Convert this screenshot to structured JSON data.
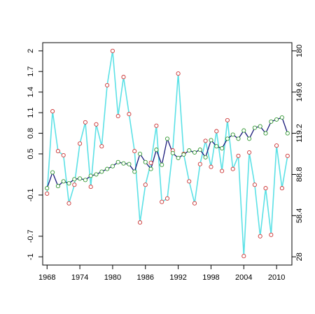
{
  "chart_data": {
    "type": "line",
    "title": "",
    "xlabel": "",
    "ylabel": "",
    "y2label": "",
    "x_ticks": [
      1968,
      1974,
      1980,
      1986,
      1992,
      1998,
      2004,
      2010
    ],
    "y_left_ticks": [
      -1,
      -0.7,
      -0.1,
      0.5,
      0.8,
      1.1,
      1.4,
      1.7,
      2
    ],
    "y_left_tick_labels": [
      "-1",
      "-0.7",
      "-0.1",
      "0.5",
      "0.8",
      "1.1",
      "1.4",
      "1.7",
      "2"
    ],
    "y_right_tick_labels": [
      "28",
      "58.4",
      "88.8",
      "119.2",
      "149.6",
      "180"
    ],
    "xlim": [
      1967.2,
      2012.8
    ],
    "ylim": [
      -1.12,
      2.12
    ],
    "grid": false,
    "colors": {
      "cyan_series": "#5ce1e6",
      "navy_series": "#1a1a7a",
      "red_marker": "#cc3333",
      "green_marker": "#339933",
      "axis": "#000000"
    },
    "series": [
      {
        "color": "cyan_series",
        "marker": "red_marker",
        "x": [
          1968,
          1969,
          1970,
          1971,
          1972,
          1973,
          1974,
          1975,
          1976,
          1977,
          1978,
          1979,
          1980,
          1981,
          1982,
          1983,
          1984,
          1985,
          1986,
          1987,
          1988,
          1989,
          1990,
          1991,
          1992,
          1993,
          1994,
          1995,
          1996,
          1997,
          1998,
          1999,
          2000,
          2001,
          2002,
          2003,
          2004,
          2005,
          2006,
          2007,
          2008,
          2009,
          2010,
          2011,
          2012
        ],
        "y": [
          -0.08,
          1.12,
          0.54,
          0.48,
          -0.22,
          0.05,
          0.65,
          0.96,
          0.02,
          0.93,
          0.61,
          1.5,
          2.0,
          1.05,
          1.62,
          1.08,
          0.54,
          -0.5,
          0.05,
          0.37,
          0.91,
          -0.2,
          -0.15,
          0.55,
          1.67,
          0.5,
          0.1,
          -0.22,
          0.35,
          0.69,
          0.31,
          0.83,
          0.25,
          0.99,
          0.28,
          0.47,
          -0.99,
          0.52,
          0.05,
          -0.7,
          0.0,
          -0.68,
          0.62,
          0.0,
          0.47
        ]
      },
      {
        "color": "navy_series",
        "marker": "green_marker",
        "x": [
          1968,
          1969,
          1970,
          1971,
          1972,
          1973,
          1974,
          1975,
          1976,
          1977,
          1978,
          1979,
          1980,
          1981,
          1982,
          1983,
          1984,
          1985,
          1986,
          1987,
          1988,
          1989,
          1990,
          1991,
          1992,
          1993,
          1994,
          1995,
          1996,
          1997,
          1998,
          1999,
          2000,
          2001,
          2002,
          2003,
          2004,
          2005,
          2006,
          2007,
          2008,
          2009,
          2010,
          2011,
          2012
        ],
        "y": [
          0.0,
          0.23,
          0.03,
          0.1,
          0.07,
          0.13,
          0.14,
          0.12,
          0.18,
          0.2,
          0.24,
          0.28,
          0.32,
          0.38,
          0.36,
          0.35,
          0.24,
          0.5,
          0.38,
          0.28,
          0.56,
          0.34,
          0.72,
          0.51,
          0.44,
          0.49,
          0.55,
          0.52,
          0.56,
          0.45,
          0.7,
          0.61,
          0.58,
          0.72,
          0.78,
          0.72,
          0.84,
          0.72,
          0.88,
          0.9,
          0.8,
          0.97,
          1.0,
          1.03,
          0.8
        ]
      }
    ]
  }
}
